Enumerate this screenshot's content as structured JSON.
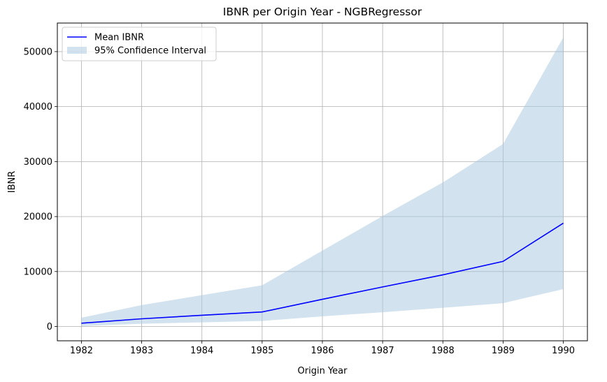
{
  "chart_data": {
    "type": "line",
    "title": "IBNR per Origin Year - NGBRegressor",
    "xlabel": "Origin Year",
    "ylabel": "IBNR",
    "x": [
      1982,
      1983,
      1984,
      1985,
      1986,
      1987,
      1988,
      1989,
      1990
    ],
    "x_tick_labels": [
      "1982",
      "1983",
      "1984",
      "1985",
      "1986",
      "1987",
      "1988",
      "1989",
      "1990"
    ],
    "y_ticks": [
      0,
      10000,
      20000,
      30000,
      40000,
      50000
    ],
    "y_tick_labels": [
      "0",
      "10000",
      "20000",
      "30000",
      "40000",
      "50000"
    ],
    "xlim": [
      1981.6,
      1990.4
    ],
    "ylim": [
      -2600,
      55200
    ],
    "grid": true,
    "legend_position": "top-left",
    "series": [
      {
        "name": "Mean IBNR",
        "kind": "line",
        "color": "#0000ff",
        "values": [
          600,
          1400,
          2050,
          2650,
          4950,
          7200,
          9400,
          11850,
          18800
        ]
      },
      {
        "name": "95% Confidence Interval",
        "kind": "band",
        "color": "#a6c8e0",
        "opacity": 0.5,
        "lower": [
          100,
          500,
          750,
          1000,
          1850,
          2600,
          3400,
          4250,
          6800
        ],
        "upper": [
          1600,
          3900,
          5700,
          7500,
          13800,
          20100,
          26200,
          33200,
          52600
        ]
      }
    ]
  }
}
